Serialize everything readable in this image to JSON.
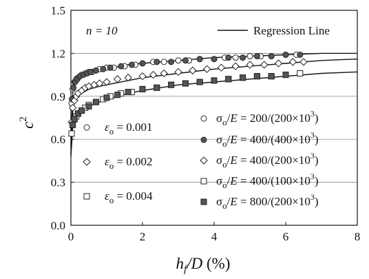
{
  "chart_data": {
    "type": "scatter",
    "title": "",
    "xlabel": "h_f/D (%)",
    "ylabel": "c^2",
    "xlim": [
      0,
      8
    ],
    "ylim": [
      0.0,
      1.5
    ],
    "xticks": [
      "0",
      "2",
      "4",
      "6",
      "8"
    ],
    "yticks": [
      "0.0",
      "0.3",
      "0.6",
      "0.9",
      "1.2",
      "1.5"
    ],
    "grid": "horizontal",
    "annotation": "n = 10",
    "legend_line": "Regression Line",
    "strain_labels": [
      {
        "marker": "circle",
        "text": "= 0.001"
      },
      {
        "marker": "diamond",
        "text": "= 0.002"
      },
      {
        "marker": "square",
        "text": "= 0.004"
      }
    ],
    "series": [
      {
        "name": "σo/E = 200/(200×10³)",
        "marker": "circle-open",
        "x": [
          0.02,
          0.05,
          0.1,
          0.15,
          0.2,
          0.3,
          0.4,
          0.5,
          0.6,
          0.8,
          1.0,
          1.2,
          1.5,
          1.8,
          2.0,
          2.3,
          2.6,
          3.0,
          3.3,
          3.6,
          4.0,
          4.3,
          4.6,
          5.0,
          5.3,
          5.6,
          6.0,
          6.3
        ],
        "y": [
          0.85,
          0.95,
          1.0,
          1.02,
          1.03,
          1.05,
          1.06,
          1.07,
          1.07,
          1.09,
          1.1,
          1.1,
          1.11,
          1.12,
          1.13,
          1.14,
          1.14,
          1.15,
          1.15,
          1.16,
          1.16,
          1.17,
          1.17,
          1.18,
          1.18,
          1.18,
          1.19,
          1.19
        ]
      },
      {
        "name": "σo/E = 400/(400×10³)",
        "marker": "circle-filled",
        "x": [
          0.03,
          0.07,
          0.12,
          0.18,
          0.25,
          0.35,
          0.45,
          0.55,
          0.7,
          0.9,
          1.1,
          1.4,
          1.7,
          2.0,
          2.4,
          2.8,
          3.2,
          3.6,
          4.0,
          4.4,
          4.8,
          5.2,
          5.6,
          6.0,
          6.4
        ],
        "y": [
          0.88,
          0.96,
          1.0,
          1.02,
          1.04,
          1.05,
          1.06,
          1.07,
          1.08,
          1.09,
          1.1,
          1.11,
          1.12,
          1.13,
          1.14,
          1.14,
          1.15,
          1.16,
          1.16,
          1.17,
          1.17,
          1.18,
          1.18,
          1.19,
          1.19
        ]
      },
      {
        "name": "σo/E = 400/(200×10³)",
        "marker": "diamond-open",
        "x": [
          0.02,
          0.05,
          0.1,
          0.15,
          0.2,
          0.3,
          0.4,
          0.5,
          0.65,
          0.8,
          1.0,
          1.3,
          1.6,
          2.0,
          2.3,
          2.6,
          3.0,
          3.4,
          3.8,
          4.2,
          4.6,
          5.0,
          5.4,
          5.8,
          6.2,
          6.5
        ],
        "y": [
          0.72,
          0.82,
          0.87,
          0.9,
          0.92,
          0.94,
          0.96,
          0.97,
          0.98,
          0.99,
          1.0,
          1.02,
          1.03,
          1.04,
          1.05,
          1.06,
          1.07,
          1.08,
          1.09,
          1.1,
          1.11,
          1.12,
          1.12,
          1.13,
          1.14,
          1.14
        ]
      },
      {
        "name": "σo/E = 400/(100×10³)",
        "marker": "square-open",
        "x": [
          0.02,
          0.05,
          0.1,
          0.15,
          0.2,
          0.3,
          0.4,
          0.5,
          0.7,
          0.9,
          1.1,
          1.4,
          1.7,
          2.0,
          2.4,
          2.8,
          3.2,
          3.6,
          4.0,
          4.4,
          4.8,
          5.2,
          5.6,
          6.0,
          6.4
        ],
        "y": [
          0.64,
          0.7,
          0.74,
          0.76,
          0.78,
          0.8,
          0.82,
          0.84,
          0.86,
          0.88,
          0.9,
          0.92,
          0.93,
          0.95,
          0.96,
          0.98,
          0.99,
          1.0,
          1.01,
          1.02,
          1.03,
          1.04,
          1.04,
          1.05,
          1.06
        ]
      },
      {
        "name": "σo/E = 800/(200×10³)",
        "marker": "square-filled",
        "x": [
          0.05,
          0.1,
          0.2,
          0.3,
          0.5,
          0.7,
          1.0,
          1.3,
          1.6,
          2.0,
          2.4,
          2.8,
          3.2,
          3.6,
          4.0,
          4.4,
          4.8,
          5.2,
          5.6,
          6.0
        ],
        "y": [
          0.7,
          0.74,
          0.78,
          0.8,
          0.83,
          0.86,
          0.89,
          0.91,
          0.93,
          0.95,
          0.96,
          0.98,
          0.99,
          1.0,
          1.01,
          1.02,
          1.03,
          1.04,
          1.04,
          1.05
        ]
      }
    ],
    "regression_lines": [
      {
        "x": [
          0,
          0.05,
          0.1,
          0.2,
          0.3,
          0.5,
          0.8,
          1.2,
          1.6,
          2,
          3,
          4,
          5,
          6,
          7,
          8
        ],
        "y": [
          0.55,
          0.93,
          0.98,
          1.02,
          1.04,
          1.06,
          1.08,
          1.1,
          1.12,
          1.13,
          1.15,
          1.17,
          1.18,
          1.19,
          1.2,
          1.2
        ]
      },
      {
        "x": [
          0,
          0.05,
          0.1,
          0.2,
          0.3,
          0.5,
          0.8,
          1.2,
          1.6,
          2,
          3,
          4,
          5,
          6,
          7,
          8
        ],
        "y": [
          0.5,
          0.8,
          0.86,
          0.9,
          0.92,
          0.95,
          0.97,
          0.99,
          1.01,
          1.03,
          1.06,
          1.09,
          1.11,
          1.13,
          1.15,
          1.16
        ]
      },
      {
        "x": [
          0,
          0.05,
          0.1,
          0.2,
          0.3,
          0.5,
          0.8,
          1.2,
          1.6,
          2,
          3,
          4,
          5,
          6,
          7,
          8
        ],
        "y": [
          0.48,
          0.68,
          0.73,
          0.77,
          0.79,
          0.83,
          0.86,
          0.89,
          0.92,
          0.94,
          0.98,
          1.0,
          1.02,
          1.04,
          1.06,
          1.07
        ]
      }
    ]
  }
}
